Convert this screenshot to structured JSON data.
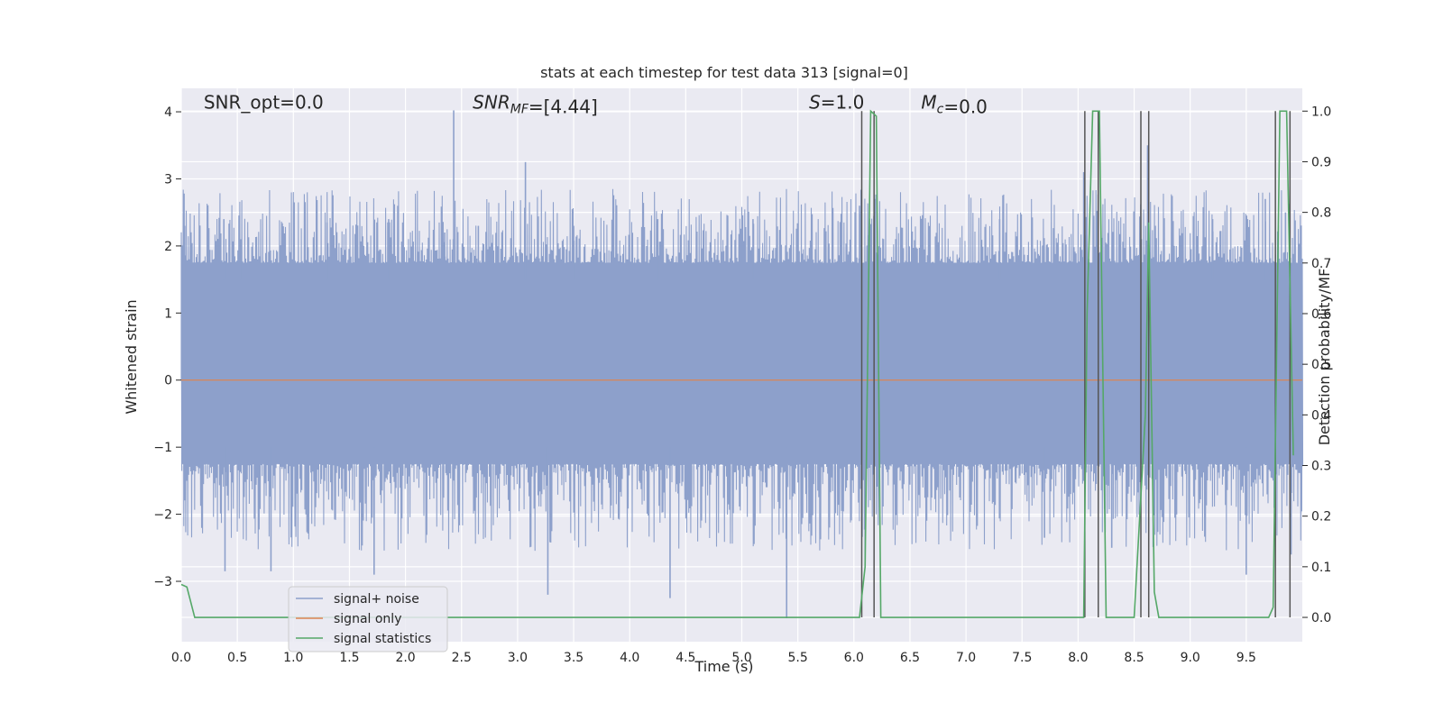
{
  "chart_data": {
    "type": "line",
    "title": "stats at each timestep for test data 313 [signal=0]",
    "xlabel": "Time (s)",
    "ylabel": "Whitened strain",
    "y2label": "Detection probability/MF",
    "xlim": [
      0.0,
      10.0
    ],
    "ylim": [
      -3.9,
      4.35
    ],
    "y2lim": [
      -0.048,
      1.045
    ],
    "x_ticks": [
      0.0,
      0.5,
      1.0,
      1.5,
      2.0,
      2.5,
      3.0,
      3.5,
      4.0,
      4.5,
      5.0,
      5.5,
      6.0,
      6.5,
      7.0,
      7.5,
      8.0,
      8.5,
      9.0,
      9.5
    ],
    "x_tick_labels": [
      "0.0",
      "0.5",
      "1.0",
      "1.5",
      "2.0",
      "2.5",
      "3.0",
      "3.5",
      "4.0",
      "4.5",
      "5.0",
      "5.5",
      "6.0",
      "6.5",
      "7.0",
      "7.5",
      "8.0",
      "8.5",
      "9.0",
      "9.5"
    ],
    "y_ticks": [
      -3,
      -2,
      -1,
      0,
      1,
      2,
      3,
      4
    ],
    "y_tick_labels": [
      "−3",
      "−2",
      "−1",
      "0",
      "1",
      "2",
      "3",
      "4"
    ],
    "y2_ticks": [
      0.0,
      0.1,
      0.2,
      0.3,
      0.4,
      0.5,
      0.6,
      0.7,
      0.8,
      0.9,
      1.0
    ],
    "y2_tick_labels": [
      "0.0",
      "0.1",
      "0.2",
      "0.3",
      "0.4",
      "0.5",
      "0.6",
      "0.7",
      "0.8",
      "0.9",
      "1.0"
    ],
    "grid": true,
    "legend_position": "lower-left",
    "annotations": [
      {
        "id": "snr-opt",
        "parts": [
          {
            "text": "SNR_opt=0.0",
            "italic": false
          }
        ],
        "x": 0.2,
        "y": 4.05
      },
      {
        "id": "snr-mf",
        "parts": [
          {
            "text": "SNR",
            "italic": true
          },
          {
            "text": "MF",
            "italic": true,
            "sub": true
          },
          {
            "text": "=[4.44]",
            "italic": false
          }
        ],
        "x": 2.6,
        "y": 4.05
      },
      {
        "id": "s-val",
        "parts": [
          {
            "text": "S",
            "italic": true
          },
          {
            "text": "=1.0",
            "italic": false
          }
        ],
        "x": 5.6,
        "y": 4.05
      },
      {
        "id": "mc-val",
        "parts": [
          {
            "text": "M",
            "italic": true
          },
          {
            "text": "c",
            "italic": true,
            "sub": true
          },
          {
            "text": "=0.0",
            "italic": false
          }
        ],
        "x": 6.6,
        "y": 4.05
      }
    ],
    "series": [
      {
        "name": "signal+ noise",
        "axis": "left",
        "color": "#8da0cb",
        "kind": "noise",
        "band": [
          -1.25,
          1.75
        ],
        "spikes_up": [
          [
            0.03,
            2.3
          ],
          [
            0.38,
            2.4
          ],
          [
            0.53,
            2.1
          ],
          [
            1.3,
            2.35
          ],
          [
            1.85,
            2.4
          ],
          [
            2.35,
            2.2
          ],
          [
            2.43,
            4.02
          ],
          [
            2.65,
            2.3
          ],
          [
            3.07,
            3.25
          ],
          [
            3.5,
            2.3
          ],
          [
            4.25,
            2.4
          ],
          [
            5.1,
            2.4
          ],
          [
            6.05,
            2.6
          ],
          [
            7.3,
            2.4
          ],
          [
            8.05,
            3.1
          ],
          [
            8.62,
            3.5
          ],
          [
            9.2,
            2.4
          ],
          [
            9.67,
            2.7
          ],
          [
            9.85,
            2.5
          ]
        ],
        "spikes_down": [
          [
            0.39,
            -2.85
          ],
          [
            0.8,
            -2.85
          ],
          [
            1.72,
            -2.9
          ],
          [
            3.27,
            -3.2
          ],
          [
            4.36,
            -3.25
          ],
          [
            5.4,
            -3.55
          ],
          [
            6.1,
            -2.8
          ],
          [
            7.7,
            -2.35
          ],
          [
            8.3,
            -2.5
          ],
          [
            9.5,
            -2.9
          ],
          [
            9.9,
            -2.6
          ]
        ]
      },
      {
        "name": "signal only",
        "axis": "left",
        "color": "#dd8452",
        "x": [
          0.0,
          10.0
        ],
        "y": [
          0.0,
          0.0
        ]
      },
      {
        "name": "signal statistics",
        "axis": "right",
        "color": "#55a868",
        "x": [
          0.0,
          0.05,
          0.12,
          0.15,
          6.05,
          6.1,
          6.15,
          6.2,
          6.24,
          8.05,
          8.08,
          8.13,
          8.19,
          8.25,
          8.5,
          8.6,
          8.63,
          8.68,
          8.72,
          9.7,
          9.74,
          9.8,
          9.86,
          9.92
        ],
        "y": [
          0.065,
          0.06,
          0.0,
          0.0,
          0.0,
          0.1,
          1.0,
          0.99,
          0.0,
          0.0,
          0.6,
          1.0,
          1.0,
          0.0,
          0.0,
          0.4,
          0.78,
          0.05,
          0.0,
          0.0,
          0.02,
          1.0,
          1.0,
          0.32
        ]
      }
    ],
    "detection_lines": {
      "color": "#555555",
      "x": [
        6.07,
        6.18,
        8.06,
        8.18,
        8.56,
        8.63,
        9.76,
        9.89
      ]
    }
  }
}
